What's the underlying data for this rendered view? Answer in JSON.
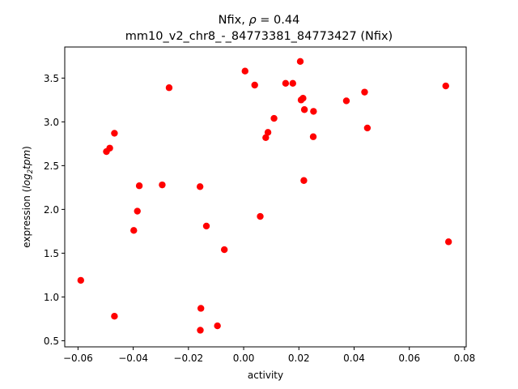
{
  "chart_data": {
    "type": "scatter",
    "title_line1": "Nfix, ",
    "title_rho_symbol": "ρ",
    "title_rho_value": " = 0.44",
    "title_line2": "mm10_v2_chr8_-_84773381_84773427 (Nfix)",
    "xlabel": "activity",
    "ylabel_prefix": "expression (",
    "ylabel_log": "log",
    "ylabel_sub": "2",
    "ylabel_tpm": "tpm",
    "ylabel_suffix": ")",
    "xlim": [
      -0.0648,
      0.0806
    ],
    "ylim": [
      0.43,
      3.855
    ],
    "x_ticks": [
      -0.06,
      -0.04,
      -0.02,
      0.0,
      0.02,
      0.04,
      0.06,
      0.08
    ],
    "x_tick_labels": [
      "−0.06",
      "−0.04",
      "−0.02",
      "0.00",
      "0.02",
      "0.04",
      "0.06",
      "0.08"
    ],
    "y_ticks": [
      0.5,
      1.0,
      1.5,
      2.0,
      2.5,
      3.0,
      3.5
    ],
    "y_tick_labels": [
      "0.5",
      "1.0",
      "1.5",
      "2.0",
      "2.5",
      "3.0",
      "3.5"
    ],
    "grid": false,
    "point_color": "#ff0000",
    "points": [
      {
        "x": -0.059,
        "y": 1.19
      },
      {
        "x": -0.0497,
        "y": 2.66
      },
      {
        "x": -0.0485,
        "y": 2.7
      },
      {
        "x": -0.0468,
        "y": 2.87
      },
      {
        "x": -0.0468,
        "y": 0.78
      },
      {
        "x": -0.0398,
        "y": 1.76
      },
      {
        "x": -0.0385,
        "y": 1.98
      },
      {
        "x": -0.0378,
        "y": 2.27
      },
      {
        "x": -0.0295,
        "y": 2.28
      },
      {
        "x": -0.027,
        "y": 3.39
      },
      {
        "x": -0.0158,
        "y": 2.26
      },
      {
        "x": -0.0155,
        "y": 0.87
      },
      {
        "x": -0.0157,
        "y": 0.62
      },
      {
        "x": -0.0135,
        "y": 1.81
      },
      {
        "x": -0.0095,
        "y": 0.67
      },
      {
        "x": -0.007,
        "y": 1.54
      },
      {
        "x": 0.0005,
        "y": 3.58
      },
      {
        "x": 0.004,
        "y": 3.42
      },
      {
        "x": 0.006,
        "y": 1.92
      },
      {
        "x": 0.008,
        "y": 2.82
      },
      {
        "x": 0.0088,
        "y": 2.88
      },
      {
        "x": 0.011,
        "y": 3.04
      },
      {
        "x": 0.0152,
        "y": 3.44
      },
      {
        "x": 0.0178,
        "y": 3.44
      },
      {
        "x": 0.0205,
        "y": 3.69
      },
      {
        "x": 0.0208,
        "y": 3.25
      },
      {
        "x": 0.0215,
        "y": 3.27
      },
      {
        "x": 0.0218,
        "y": 2.33
      },
      {
        "x": 0.022,
        "y": 3.14
      },
      {
        "x": 0.0252,
        "y": 2.83
      },
      {
        "x": 0.0253,
        "y": 3.12
      },
      {
        "x": 0.0372,
        "y": 3.24
      },
      {
        "x": 0.0438,
        "y": 3.34
      },
      {
        "x": 0.0448,
        "y": 2.93
      },
      {
        "x": 0.0732,
        "y": 3.41
      },
      {
        "x": 0.0742,
        "y": 1.63
      }
    ]
  }
}
